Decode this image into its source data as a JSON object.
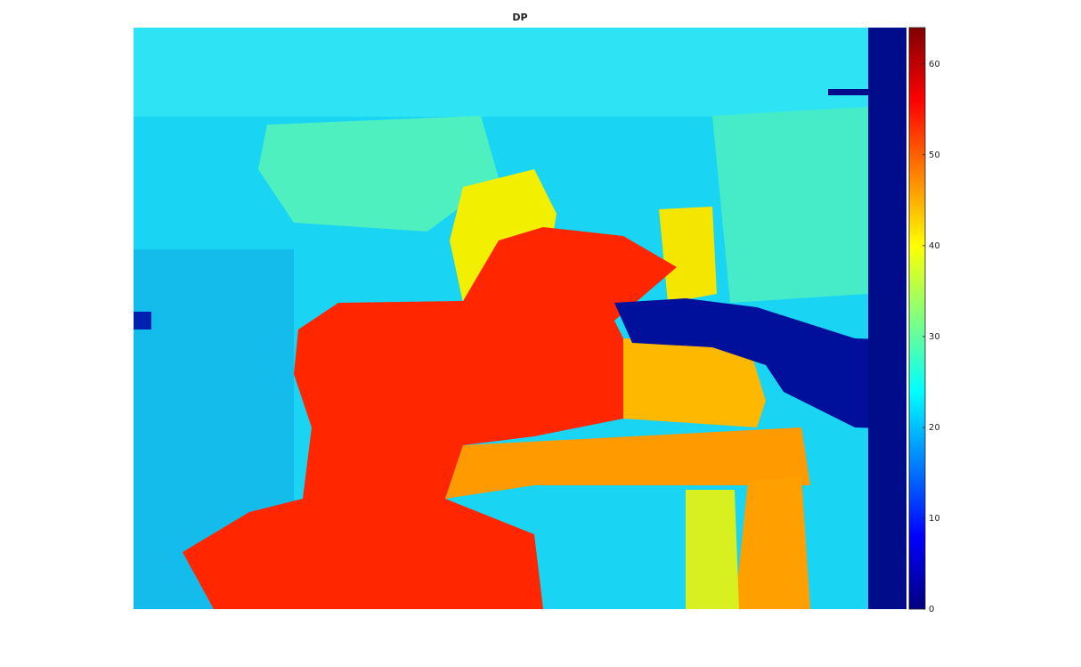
{
  "chart_data": {
    "type": "image",
    "title": "DP",
    "colorbar": {
      "colormap": "jet",
      "clim": [
        0,
        64
      ],
      "ticks": [
        0,
        10,
        20,
        30,
        40,
        50,
        60
      ]
    }
  }
}
